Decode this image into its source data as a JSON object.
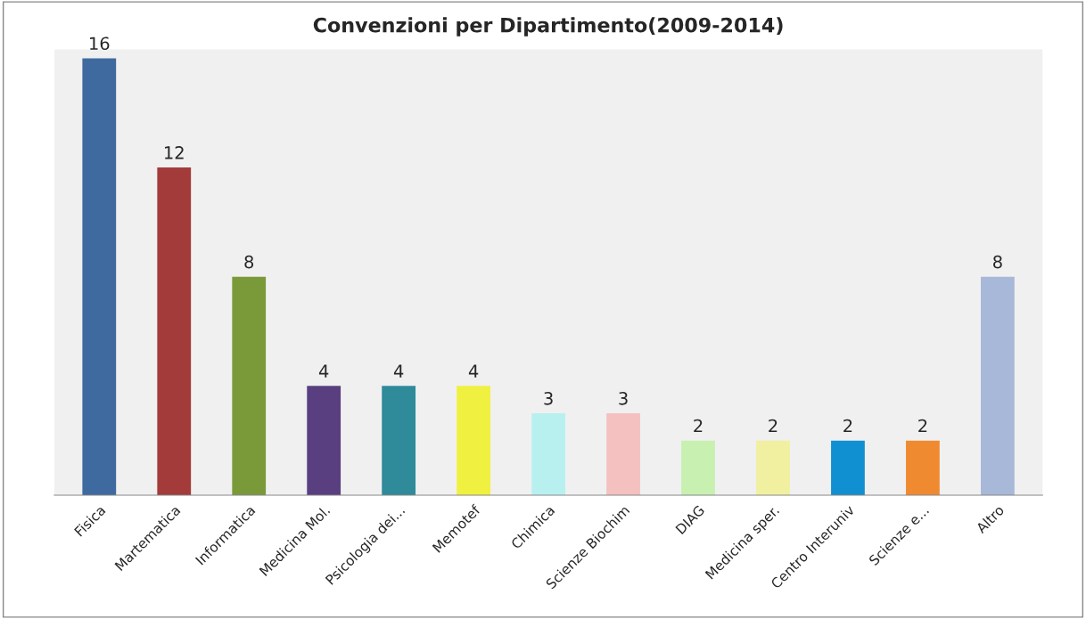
{
  "chart_data": {
    "type": "bar",
    "title": "Convenzioni per Dipartimento(2009-2014)",
    "categories": [
      "Fisica",
      "Martematica",
      "Informatica",
      "Medicina Mol.",
      "Psicologia dei...",
      "Memotef",
      "Chimica",
      "Scienze Biochim",
      "DIAG",
      "Medicina sper.",
      "Centro Interuniv",
      "Scienze e...",
      "Altro"
    ],
    "values": [
      16,
      12,
      8,
      4,
      4,
      4,
      3,
      3,
      2,
      2,
      2,
      2,
      8
    ],
    "colors": [
      "#3f6aa0",
      "#a33b3b",
      "#7a9a3a",
      "#5a3f80",
      "#2f8a9a",
      "#f0f040",
      "#b8f0f0",
      "#f5c0c0",
      "#c8f0b0",
      "#f0f0a0",
      "#1090d0",
      "#f08a30",
      "#a8b8d8"
    ],
    "data_labels": true
  }
}
